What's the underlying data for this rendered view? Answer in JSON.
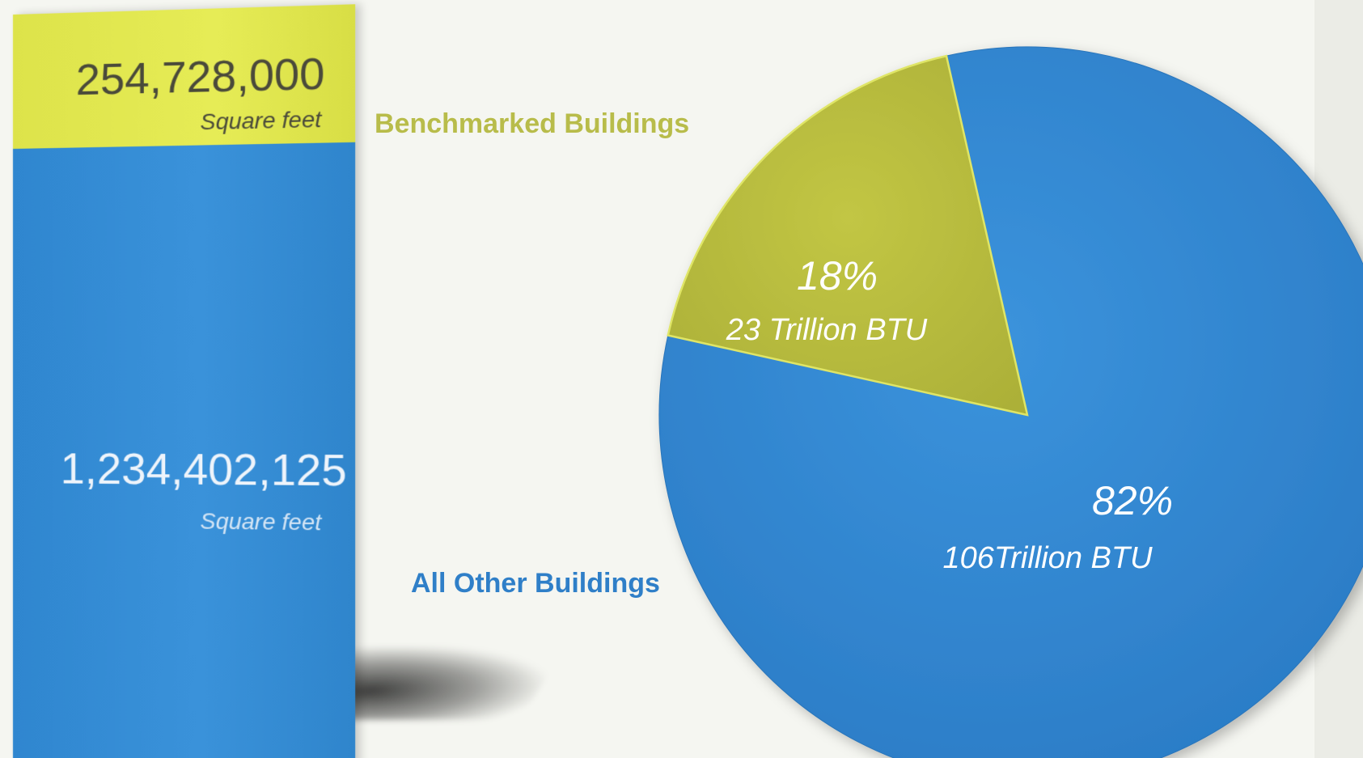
{
  "chart_data": {
    "type": "pie",
    "categories": [
      "Benchmarked Buildings",
      "All Other Buildings"
    ],
    "bar": {
      "segments": [
        {
          "name": "Benchmarked Buildings",
          "value": 254728000,
          "value_label": "254,728,000",
          "unit": "Square feet",
          "color": "#e2e852"
        },
        {
          "name": "All Other Buildings",
          "value": 1234402125,
          "value_label": "1,234,402,125",
          "unit": "Square feet",
          "color": "#3590d8"
        }
      ]
    },
    "pie": {
      "slices": [
        {
          "name": "Benchmarked Buildings",
          "percent": 18,
          "percent_label": "18%",
          "energy_label": "23 Trillion BTU",
          "color": "#b9bd3e"
        },
        {
          "name": "All Other Buildings",
          "percent": 82,
          "percent_label": "82%",
          "energy_label": "106Trillion BTU",
          "color": "#3387d4"
        }
      ]
    }
  }
}
